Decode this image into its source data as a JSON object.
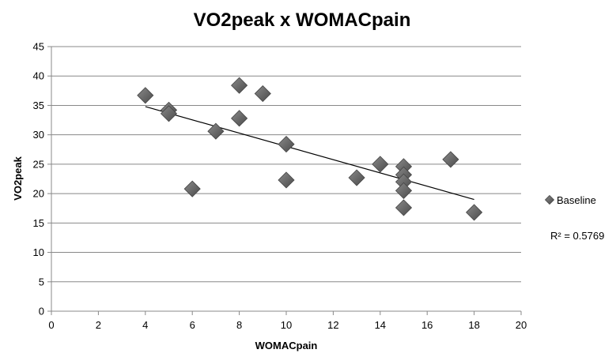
{
  "chart_data": {
    "type": "scatter",
    "title": "VO2peak x WOMACpain",
    "xlabel": "WOMACpain",
    "ylabel": "VO2peak",
    "xlim": [
      0,
      20
    ],
    "ylim": [
      0,
      45
    ],
    "xticks": [
      "0",
      "2",
      "4",
      "6",
      "8",
      "10",
      "12",
      "14",
      "16",
      "18",
      "20"
    ],
    "yticks": [
      "0",
      "5",
      "10",
      "15",
      "20",
      "25",
      "30",
      "35",
      "40",
      "45"
    ],
    "grid": "horizontal",
    "legend_position": "right",
    "series": [
      {
        "name": "Baseline",
        "marker": "diamond",
        "color": "#5f5f5f",
        "points": [
          {
            "x": 4,
            "y": 36.7
          },
          {
            "x": 5,
            "y": 34.2
          },
          {
            "x": 5,
            "y": 33.6
          },
          {
            "x": 6,
            "y": 20.8
          },
          {
            "x": 7,
            "y": 30.6
          },
          {
            "x": 8,
            "y": 38.4
          },
          {
            "x": 8,
            "y": 32.8
          },
          {
            "x": 9,
            "y": 37.0
          },
          {
            "x": 10,
            "y": 28.4
          },
          {
            "x": 10,
            "y": 22.3
          },
          {
            "x": 13,
            "y": 22.7
          },
          {
            "x": 14,
            "y": 25.0
          },
          {
            "x": 15,
            "y": 24.6
          },
          {
            "x": 15,
            "y": 23.2
          },
          {
            "x": 15,
            "y": 22.0
          },
          {
            "x": 15,
            "y": 20.5
          },
          {
            "x": 15,
            "y": 17.6
          },
          {
            "x": 17,
            "y": 25.8
          },
          {
            "x": 18,
            "y": 16.8
          }
        ]
      }
    ],
    "trendline": {
      "type": "linear",
      "x_start": 4,
      "y_start": 34.8,
      "x_end": 18,
      "y_end": 19.0,
      "label": "R² = 0.5769"
    }
  }
}
